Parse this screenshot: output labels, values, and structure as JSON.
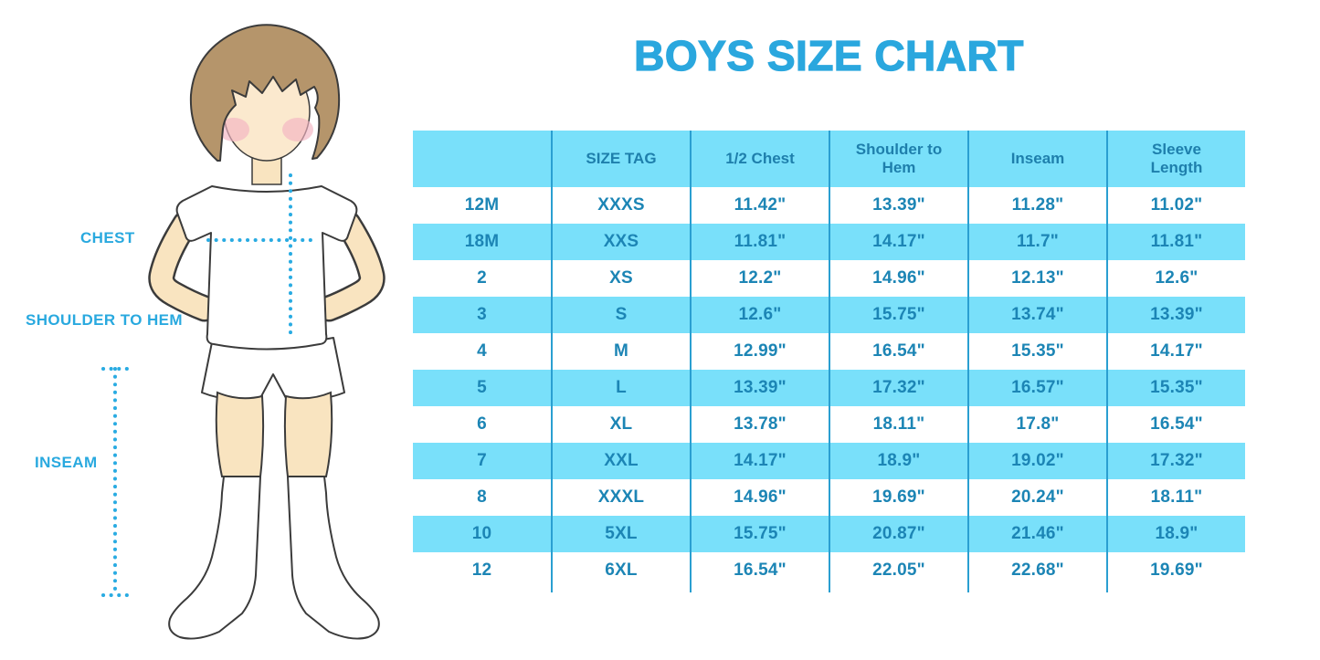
{
  "title": "BOYS SIZE CHART",
  "illustration": {
    "figure": "boy-in-tshirt-shorts-and-socks",
    "labels": {
      "chest": "CHEST",
      "shoulder_to_hem": "SHOULDER TO HEM",
      "inseam": "INSEAM"
    }
  },
  "colors": {
    "title_blue": "#2AA7DE",
    "label_blue": "#29A9DF",
    "table_header_bg": "#79E0FA",
    "table_stripe_bg": "#79E0FA",
    "table_text": "#1C85B5",
    "table_divider": "#2A9FD1",
    "dotted_line": "#29ABE2",
    "skin": "#F9E4C0",
    "hair": "#B5956B",
    "blush": "#F3B3C2",
    "outline": "#3B3B3B"
  },
  "chart_data": {
    "type": "table",
    "title": "BOYS SIZE CHART",
    "columns": [
      "",
      "SIZE TAG",
      "1/2 Chest",
      "Shoulder to Hem",
      "Inseam",
      "Sleeve Length"
    ],
    "rows": [
      [
        "12M",
        "XXXS",
        "11.42\"",
        "13.39\"",
        "11.28\"",
        "11.02\""
      ],
      [
        "18M",
        "XXS",
        "11.81\"",
        "14.17\"",
        "11.7\"",
        "11.81\""
      ],
      [
        "2",
        "XS",
        "12.2\"",
        "14.96\"",
        "12.13\"",
        "12.6\""
      ],
      [
        "3",
        "S",
        "12.6\"",
        "15.75\"",
        "13.74\"",
        "13.39\""
      ],
      [
        "4",
        "M",
        "12.99\"",
        "16.54\"",
        "15.35\"",
        "14.17\""
      ],
      [
        "5",
        "L",
        "13.39\"",
        "17.32\"",
        "16.57\"",
        "15.35\""
      ],
      [
        "6",
        "XL",
        "13.78\"",
        "18.11\"",
        "17.8\"",
        "16.54\""
      ],
      [
        "7",
        "XXL",
        "14.17\"",
        "18.9\"",
        "19.02\"",
        "17.32\""
      ],
      [
        "8",
        "XXXL",
        "14.96\"",
        "19.69\"",
        "20.24\"",
        "18.11\""
      ],
      [
        "10",
        "5XL",
        "15.75\"",
        "20.87\"",
        "21.46\"",
        "18.9\""
      ],
      [
        "12",
        "6XL",
        "16.54\"",
        "22.05\"",
        "22.68\"",
        "19.69\""
      ]
    ],
    "units": "inches",
    "stripe_rows": [
      1,
      3,
      5,
      7,
      9
    ],
    "layout_hint": "striped table, vertical dividers only, no outer border"
  }
}
